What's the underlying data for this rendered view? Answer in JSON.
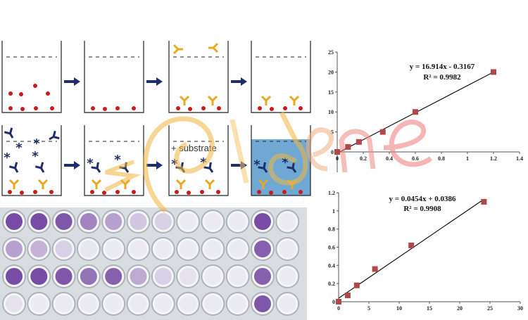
{
  "diagram": {
    "substrate_label": "+ substrate",
    "colors": {
      "antigen": "#cc1a1a",
      "capture_antibody": "#e8a820",
      "detection_antibody": "#1f2d6b",
      "arrow": "#1f2d6b",
      "substrate_well": "#6fa9d3",
      "well_purple": "#6a3a9a"
    },
    "watermark": "zgidene"
  },
  "chart_data": [
    {
      "type": "scatter",
      "x": [
        0,
        0.083,
        0.167,
        0.35,
        0.6,
        1.2
      ],
      "y": [
        0,
        1.25,
        2.5,
        5,
        10,
        20
      ],
      "trendline": {
        "slope": 16.914,
        "intercept": -0.3167
      },
      "equation": "y = 16.914x - 0.3167",
      "r2": "R² = 0.9982",
      "xlim": [
        0,
        1.4
      ],
      "ylim": [
        -5,
        25
      ],
      "xticks": [
        "0",
        "0.2",
        "0.4",
        "0.6",
        "0.8",
        "1",
        "1.2",
        "1.4"
      ],
      "yticks": [
        "0",
        "5",
        "10",
        "15",
        "20",
        "25"
      ],
      "marker_color": "#b04848",
      "grid": false
    },
    {
      "type": "scatter",
      "x": [
        0,
        1.5,
        3,
        6,
        12,
        24
      ],
      "y": [
        0,
        0.07,
        0.18,
        0.36,
        0.62,
        1.1
      ],
      "trendline": {
        "slope": 0.0454,
        "intercept": 0.0386
      },
      "equation": "y = 0.0454x + 0.0386",
      "r2": "R² = 0.9908",
      "xlim": [
        0,
        30
      ],
      "ylim": [
        0,
        1.2
      ],
      "xticks": [
        "0",
        "5",
        "10",
        "15",
        "20",
        "25",
        "30"
      ],
      "yticks": [
        "0",
        "0.2",
        "0.4",
        "0.6",
        "0.8",
        "1",
        "1.2"
      ],
      "marker_color": "#b04848",
      "grid": false
    }
  ]
}
